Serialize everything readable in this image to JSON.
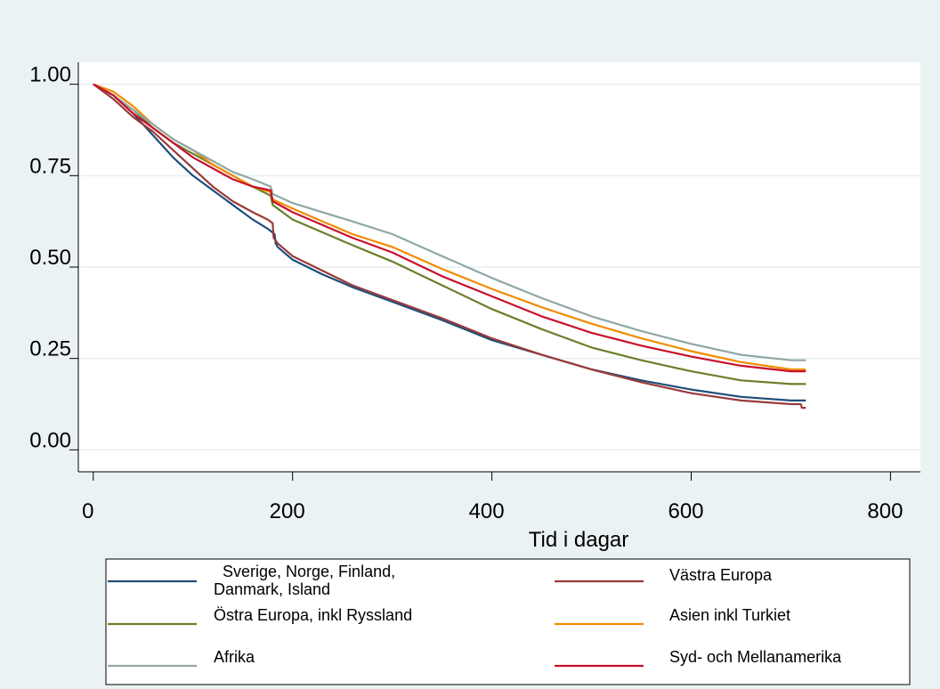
{
  "chart_data": {
    "type": "line",
    "title": "",
    "xlabel": "Tid i dagar",
    "ylabel": "",
    "xlim": [
      -15,
      830
    ],
    "ylim": [
      -0.06,
      1.06
    ],
    "xticks": [
      0,
      200,
      400,
      600,
      800
    ],
    "xtick_labels": [
      "0",
      "200",
      "400",
      "600",
      "800"
    ],
    "yticks": [
      0,
      0.25,
      0.5,
      0.75,
      1
    ],
    "ytick_labels": [
      "0.00",
      "0.25",
      "0.50",
      "0.75",
      "1.00"
    ],
    "grid": true,
    "legend_position": "bottom",
    "series": [
      {
        "name": "Sverige, Norge, Finland, Danmark, Island",
        "color": "#1f4e79",
        "x": [
          0,
          20,
          40,
          60,
          80,
          100,
          120,
          140,
          160,
          175,
          182,
          183,
          185,
          200,
          230,
          260,
          300,
          350,
          400,
          450,
          500,
          550,
          600,
          650,
          700,
          715
        ],
        "y": [
          1.0,
          0.97,
          0.92,
          0.86,
          0.8,
          0.75,
          0.71,
          0.67,
          0.63,
          0.605,
          0.59,
          0.565,
          0.555,
          0.52,
          0.48,
          0.445,
          0.405,
          0.355,
          0.3,
          0.26,
          0.22,
          0.19,
          0.165,
          0.145,
          0.135,
          0.135
        ]
      },
      {
        "name": "Västra Europa",
        "color": "#9b3a3a",
        "x": [
          0,
          20,
          40,
          60,
          80,
          100,
          120,
          140,
          160,
          175,
          180,
          181,
          185,
          200,
          230,
          260,
          300,
          350,
          400,
          450,
          500,
          550,
          600,
          650,
          700,
          710,
          711,
          715
        ],
        "y": [
          1.0,
          0.96,
          0.91,
          0.87,
          0.82,
          0.77,
          0.72,
          0.68,
          0.65,
          0.63,
          0.62,
          0.58,
          0.565,
          0.53,
          0.49,
          0.45,
          0.41,
          0.36,
          0.305,
          0.26,
          0.22,
          0.185,
          0.155,
          0.135,
          0.125,
          0.125,
          0.115,
          0.115
        ]
      },
      {
        "name": "Östra Europa, inkl Ryssland",
        "color": "#6b7f2a",
        "x": [
          0,
          20,
          40,
          60,
          80,
          100,
          120,
          140,
          160,
          178,
          180,
          200,
          230,
          260,
          300,
          350,
          400,
          450,
          500,
          550,
          600,
          650,
          700,
          715
        ],
        "y": [
          1.0,
          0.97,
          0.93,
          0.88,
          0.84,
          0.81,
          0.78,
          0.75,
          0.72,
          0.695,
          0.67,
          0.63,
          0.595,
          0.56,
          0.515,
          0.45,
          0.385,
          0.33,
          0.28,
          0.245,
          0.215,
          0.19,
          0.18,
          0.18
        ]
      },
      {
        "name": "Asien inkl Turkiet",
        "color": "#f08c00",
        "x": [
          0,
          20,
          40,
          60,
          80,
          100,
          120,
          140,
          160,
          178,
          180,
          200,
          230,
          260,
          300,
          350,
          400,
          450,
          500,
          550,
          600,
          650,
          700,
          715
        ],
        "y": [
          1.0,
          0.98,
          0.94,
          0.89,
          0.85,
          0.82,
          0.78,
          0.75,
          0.72,
          0.705,
          0.685,
          0.66,
          0.625,
          0.59,
          0.555,
          0.495,
          0.44,
          0.39,
          0.345,
          0.305,
          0.27,
          0.24,
          0.22,
          0.22
        ]
      },
      {
        "name": "Afrika",
        "color": "#8fa7a7",
        "x": [
          0,
          20,
          40,
          60,
          80,
          100,
          120,
          140,
          160,
          178,
          180,
          200,
          230,
          260,
          300,
          350,
          400,
          450,
          500,
          550,
          600,
          650,
          700,
          715
        ],
        "y": [
          1.0,
          0.97,
          0.93,
          0.89,
          0.85,
          0.82,
          0.79,
          0.76,
          0.74,
          0.72,
          0.7,
          0.675,
          0.65,
          0.625,
          0.59,
          0.53,
          0.47,
          0.415,
          0.365,
          0.325,
          0.29,
          0.26,
          0.245,
          0.245
        ]
      },
      {
        "name": "Syd- och Mellanamerika",
        "color": "#c8102e",
        "x": [
          0,
          20,
          40,
          60,
          80,
          100,
          120,
          140,
          160,
          178,
          180,
          200,
          230,
          260,
          300,
          350,
          400,
          450,
          500,
          550,
          600,
          650,
          700,
          715
        ],
        "y": [
          1.0,
          0.97,
          0.92,
          0.88,
          0.84,
          0.8,
          0.77,
          0.74,
          0.72,
          0.71,
          0.68,
          0.65,
          0.615,
          0.58,
          0.54,
          0.475,
          0.42,
          0.365,
          0.32,
          0.285,
          0.255,
          0.23,
          0.215,
          0.215
        ]
      }
    ]
  }
}
